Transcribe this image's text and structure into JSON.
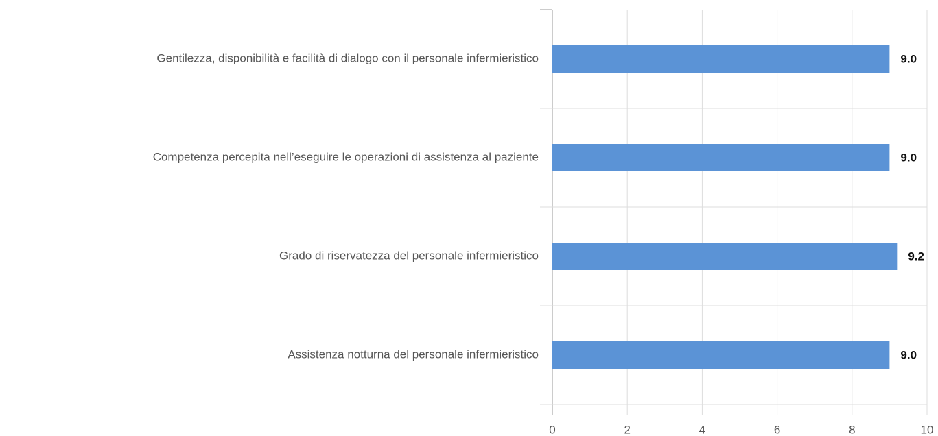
{
  "chart_data": {
    "type": "bar",
    "orientation": "horizontal",
    "categories": [
      "Gentilezza, disponibilità e facilità di dialogo con il personale infermieristico",
      "Competenza percepita nell’eseguire le operazioni di assistenza al paziente",
      "Grado di riservatezza del personale infermieristico",
      "Assistenza notturna del personale infermieristico"
    ],
    "values": [
      9.0,
      9.0,
      9.2,
      9.0
    ],
    "value_labels": [
      "9.0",
      "9.0",
      "9.2",
      "9.0"
    ],
    "color": "#5b93d6",
    "xlim": [
      0,
      10
    ],
    "xticks": [
      0,
      2,
      4,
      6,
      8,
      10
    ],
    "grid": true
  }
}
